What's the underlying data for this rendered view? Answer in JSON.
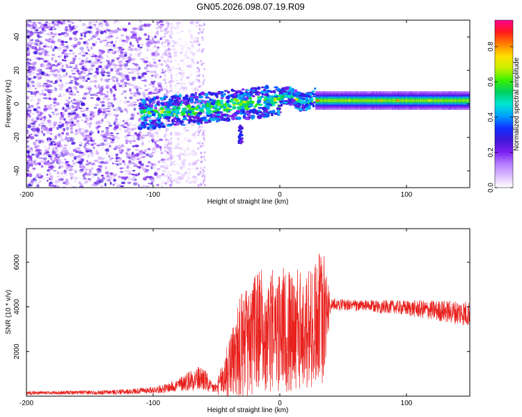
{
  "title": "GN05.2026.098.07.19.R09",
  "chart_data": [
    {
      "type": "heatmap",
      "name": "spectrogram",
      "xlabel": "Height of straight line (km)",
      "ylabel": "Frequency (Hz)",
      "xlim": [
        -200,
        150
      ],
      "ylim": [
        -50,
        50
      ],
      "xticks": [
        -200,
        -100,
        0,
        100
      ],
      "yticks": [
        -40,
        -20,
        0,
        20,
        40
      ],
      "colorbar": {
        "label": "Normalized spectral amplitude",
        "range": [
          0,
          0.95
        ],
        "ticks": [
          0.0,
          0.2,
          0.4,
          0.6,
          0.8
        ],
        "tick_labels": [
          "0.0",
          "0.2",
          "0.4",
          "0.6",
          "0.8"
        ],
        "colors": [
          "#ffffff",
          "#dcbcff",
          "#b57cff",
          "#7a1ef0",
          "#3f18d8",
          "#1030ff",
          "#00a0ff",
          "#00e6d0",
          "#00d060",
          "#3cf000",
          "#c8f000",
          "#ffe000",
          "#ff8000",
          "#ff1a1a",
          "#ff0090"
        ]
      },
      "features": [
        {
          "description": "scattered noise",
          "x_range": [
            -200,
            -90
          ],
          "freq_range": [
            -50,
            50
          ],
          "amplitude": 0.15
        },
        {
          "description": "transition cluster",
          "x_range": [
            -100,
            -40
          ],
          "freq_center": -5,
          "amplitude": 0.3
        },
        {
          "description": "narrow line",
          "x_range": [
            28,
            150
          ],
          "freq_center": 2,
          "amplitude": 0.75
        }
      ]
    },
    {
      "type": "line",
      "name": "snr",
      "xlabel": "Height of straight line (km)",
      "ylabel": "SNR (10 * v/v)",
      "xlim": [
        -200,
        150
      ],
      "ylim": [
        0,
        7500
      ],
      "xticks": [
        -200,
        -100,
        0,
        100
      ],
      "yticks": [
        2000,
        4000,
        6000
      ],
      "color": "#e8211d",
      "series": [
        {
          "name": "SNR",
          "x": [
            -200,
            -180,
            -160,
            -140,
            -120,
            -100,
            -90,
            -80,
            -70,
            -60,
            -55,
            -50,
            -40,
            -30,
            -20,
            -10,
            0,
            10,
            20,
            30,
            35,
            40,
            50,
            60,
            70,
            80,
            90,
            100,
            110,
            120,
            130,
            140,
            150
          ],
          "y": [
            150,
            150,
            160,
            170,
            200,
            280,
            350,
            500,
            750,
            800,
            400,
            350,
            1200,
            2300,
            2800,
            3000,
            3000,
            2900,
            3100,
            3500,
            3600,
            4100,
            4100,
            4050,
            4050,
            4000,
            4000,
            3950,
            3900,
            3850,
            3800,
            3750,
            3700
          ],
          "spread": [
            80,
            80,
            90,
            100,
            120,
            150,
            200,
            300,
            500,
            600,
            300,
            250,
            1400,
            2400,
            2700,
            2800,
            2800,
            2700,
            2800,
            3000,
            3000,
            300,
            250,
            250,
            250,
            300,
            300,
            350,
            400,
            450,
            500,
            550,
            600
          ]
        }
      ]
    }
  ]
}
